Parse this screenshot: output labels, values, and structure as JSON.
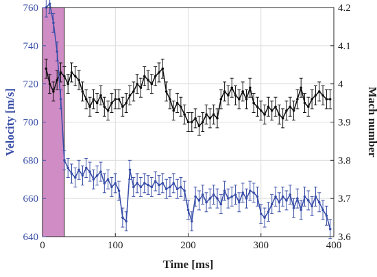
{
  "chart_data": {
    "type": "line",
    "xlabel": "Time [ms]",
    "ylabel_left": "Velocity [m/s]",
    "ylabel_right": "Mach number",
    "xlim": [
      0,
      400
    ],
    "ylim_left": [
      640,
      760
    ],
    "ylim_right": [
      3.6,
      4.2
    ],
    "x_ticks": [
      "0",
      "100",
      "200",
      "300",
      "400"
    ],
    "y_left_ticks": [
      "640",
      "660",
      "680",
      "700",
      "720",
      "740",
      "760"
    ],
    "y_right_ticks": [
      "3.6",
      "3.7",
      "3.8",
      "3.9",
      "4",
      "4.1",
      "4.2"
    ],
    "grid": true,
    "shaded_region": {
      "x": [
        0,
        30
      ],
      "color": "#d08cc4"
    },
    "series": [
      {
        "axis": "left",
        "color": "#3a4fa8",
        "x": [
          5,
          10,
          15,
          20,
          25,
          30,
          35,
          40,
          45,
          50,
          55,
          60,
          65,
          70,
          75,
          80,
          85,
          90,
          95,
          100,
          105,
          110,
          115,
          120,
          125,
          130,
          135,
          140,
          145,
          150,
          155,
          160,
          165,
          170,
          175,
          180,
          185,
          190,
          195,
          200,
          205,
          210,
          215,
          220,
          225,
          230,
          235,
          240,
          245,
          250,
          255,
          260,
          265,
          270,
          275,
          280,
          285,
          290,
          295,
          300,
          305,
          310,
          315,
          320,
          325,
          330,
          335,
          340,
          345,
          350,
          355,
          360,
          365,
          370,
          375,
          380,
          385,
          390,
          395
        ],
        "y": [
          760,
          762,
          752,
          737,
          712,
          680,
          676,
          673,
          671,
          675,
          672,
          676,
          674,
          670,
          672,
          674,
          668,
          670,
          666,
          668,
          664,
          650,
          648,
          675,
          666,
          668,
          666,
          668,
          667,
          666,
          669,
          667,
          668,
          665,
          666,
          668,
          665,
          666,
          664,
          654,
          648,
          661,
          659,
          662,
          658,
          660,
          662,
          660,
          657,
          664,
          660,
          661,
          662,
          658,
          663,
          660,
          664,
          663,
          661,
          652,
          650,
          653,
          657,
          661,
          658,
          661,
          659,
          662,
          655,
          660,
          654,
          661,
          659,
          656,
          661,
          658,
          654,
          651,
          644
        ],
        "error": 5
      },
      {
        "axis": "right",
        "color": "#111111",
        "x": [
          5,
          10,
          15,
          20,
          25,
          30,
          35,
          40,
          45,
          50,
          55,
          60,
          65,
          70,
          75,
          80,
          85,
          90,
          95,
          100,
          105,
          110,
          115,
          120,
          125,
          130,
          135,
          140,
          145,
          150,
          155,
          160,
          165,
          170,
          175,
          180,
          185,
          190,
          195,
          200,
          205,
          210,
          215,
          220,
          225,
          230,
          235,
          240,
          245,
          250,
          255,
          260,
          265,
          270,
          275,
          280,
          285,
          290,
          295,
          300,
          305,
          310,
          315,
          320,
          325,
          330,
          335,
          340,
          345,
          350,
          355,
          360,
          365,
          370,
          375,
          380,
          385,
          390,
          395
        ],
        "y": [
          4.04,
          4.0,
          3.98,
          4.01,
          4.03,
          4.02,
          4.0,
          4.03,
          4.02,
          4.01,
          3.98,
          3.96,
          3.94,
          3.96,
          3.95,
          3.97,
          3.94,
          3.93,
          3.95,
          3.96,
          3.96,
          3.94,
          3.95,
          3.97,
          3.98,
          4.0,
          3.99,
          4.02,
          4.01,
          4.0,
          4.02,
          4.03,
          4.04,
          3.98,
          3.96,
          3.93,
          3.95,
          3.94,
          3.92,
          3.9,
          3.9,
          3.91,
          3.89,
          3.9,
          3.92,
          3.91,
          3.92,
          3.91,
          3.96,
          3.98,
          3.97,
          3.99,
          3.97,
          3.96,
          3.98,
          3.96,
          3.99,
          3.95,
          3.94,
          3.93,
          3.92,
          3.94,
          3.93,
          3.94,
          3.92,
          3.91,
          3.93,
          3.94,
          3.93,
          3.96,
          3.99,
          3.95,
          3.94,
          3.96,
          3.97,
          3.98,
          3.97,
          3.96,
          3.96
        ],
        "error": 0.025
      }
    ]
  }
}
